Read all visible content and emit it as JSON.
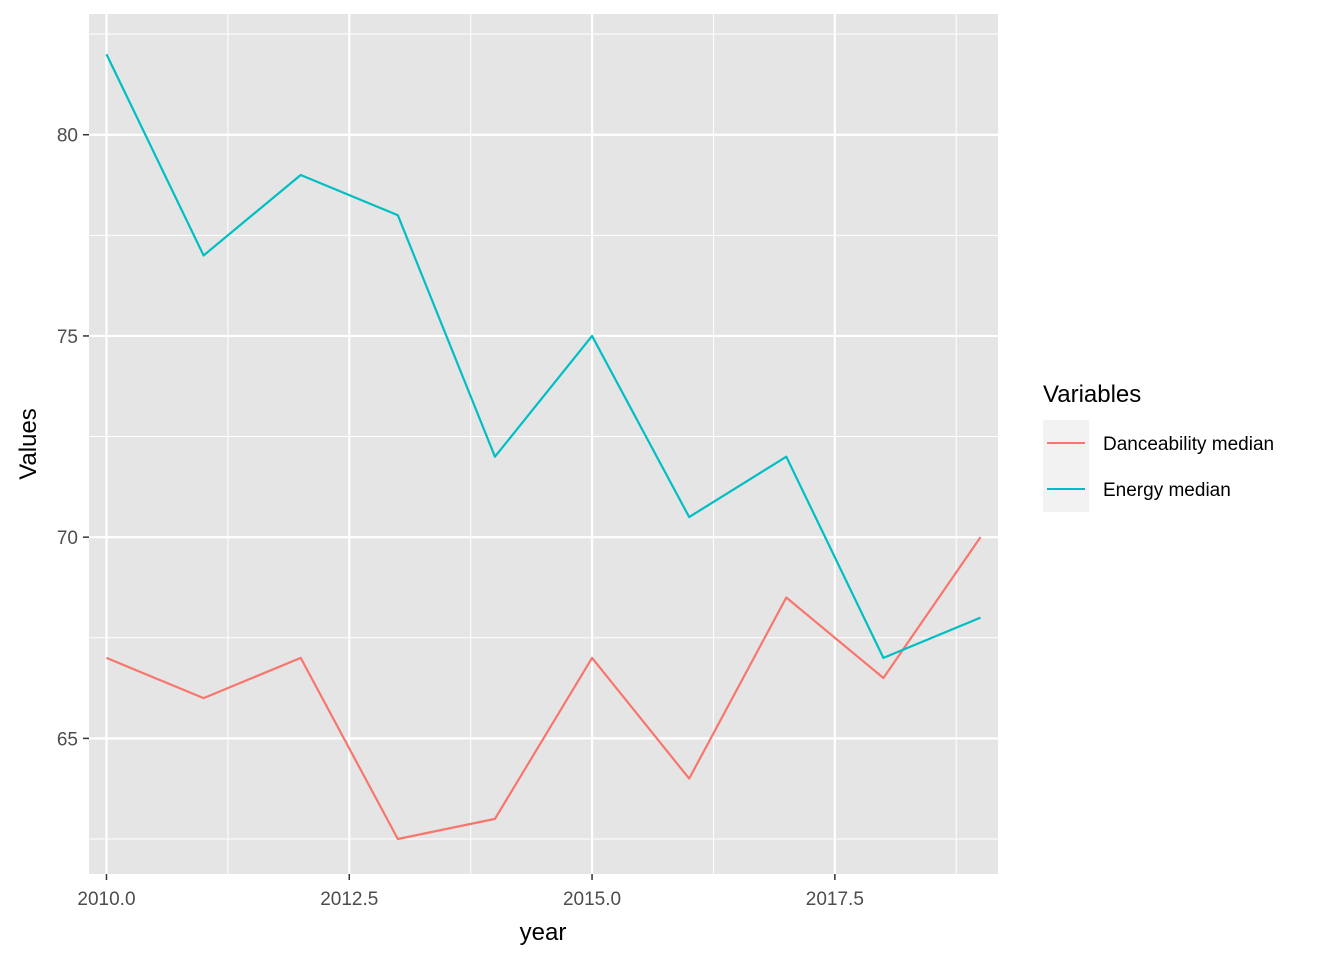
{
  "chart_data": {
    "type": "line",
    "xlabel": "year",
    "ylabel": "Values",
    "xlim": [
      2009.82,
      2019.18
    ],
    "ylim": [
      61.63,
      83.0
    ],
    "x_ticks": [
      2010.0,
      2012.5,
      2015.0,
      2017.5
    ],
    "x_tick_labels": [
      "2010.0",
      "2012.5",
      "2015.0",
      "2017.5"
    ],
    "y_ticks": [
      65,
      70,
      75,
      80
    ],
    "y_tick_labels": [
      "65",
      "70",
      "75",
      "80"
    ],
    "grid": true,
    "legend": {
      "title": "Variables",
      "position": "right",
      "entries": [
        "Danceability median",
        "Energy median"
      ]
    },
    "x": [
      2010,
      2011,
      2012,
      2013,
      2014,
      2015,
      2016,
      2017,
      2018,
      2019
    ],
    "series": [
      {
        "name": "Danceability median",
        "color": "#F8766D",
        "values": [
          67,
          66,
          67,
          62.5,
          63,
          67,
          64,
          68.5,
          66.5,
          70
        ]
      },
      {
        "name": "Energy median",
        "color": "#00BFC4",
        "values": [
          82,
          77,
          79,
          78,
          72,
          75,
          70.5,
          72,
          67,
          68
        ]
      }
    ]
  },
  "colors": {
    "panel_background": "#E5E5E5",
    "grid_major": "#FFFFFF",
    "legend_key_background": "#F2F2F2"
  }
}
